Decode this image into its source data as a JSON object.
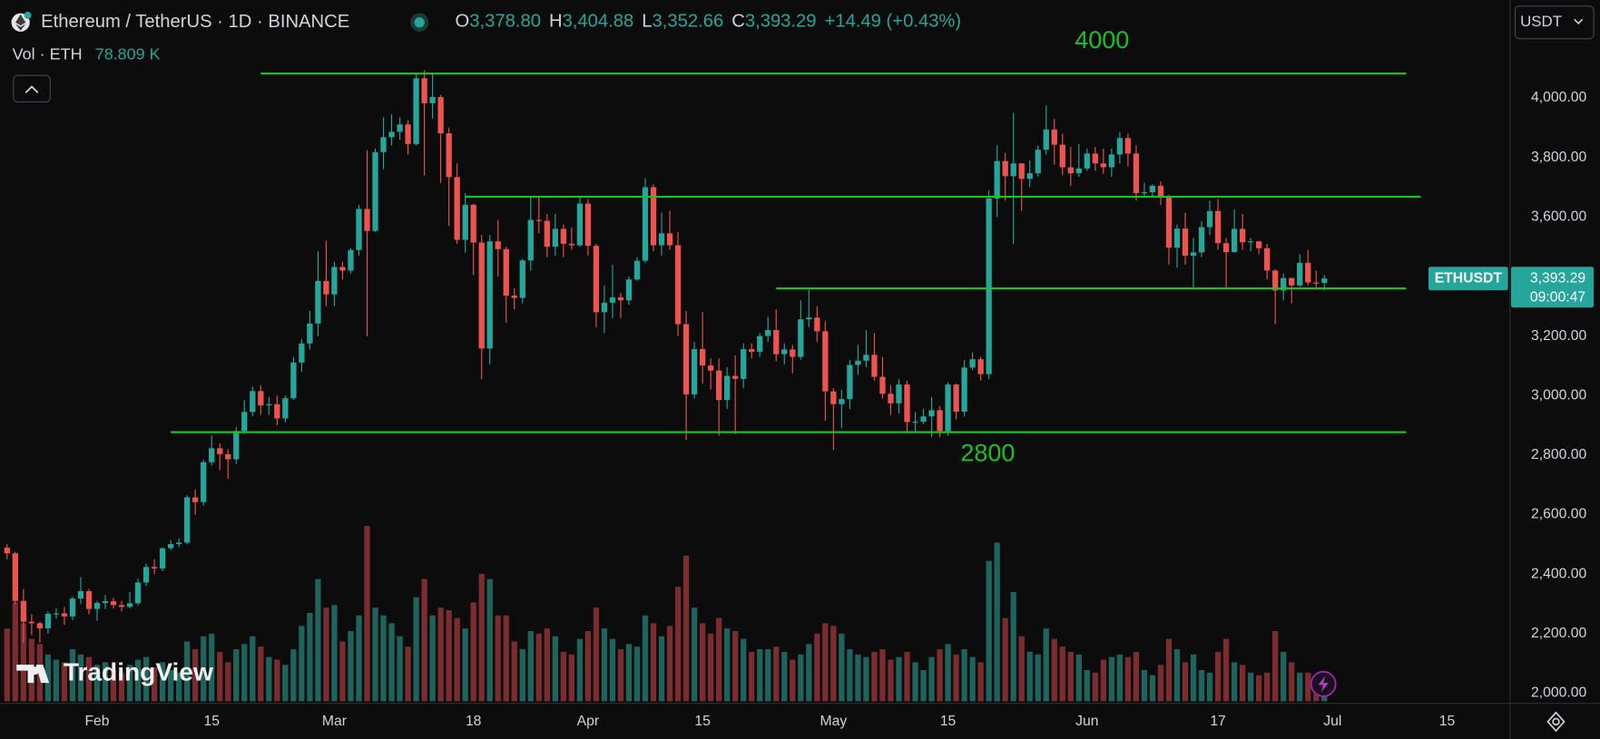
{
  "header": {
    "symbol": "Ethereum / TetherUS · 1D · BINANCE",
    "o_label": "O",
    "open": "3,378.80",
    "h_label": "H",
    "high": "3,404.88",
    "l_label": "L",
    "low": "3,352.66",
    "c_label": "C",
    "close": "3,393.29",
    "change": "+14.49 (+0.43%)",
    "volume_label": "Vol · ETH",
    "volume": "78.809 K",
    "currency": "USDT",
    "watermark": "TradingView"
  },
  "price_tag": {
    "symbol": "ETHUSDT",
    "price": "3,393.29",
    "countdown": "09:00:47"
  },
  "chart_data": {
    "type": "candlestick",
    "up_color": "#26a69a",
    "down_color": "#ef5350",
    "volume_up_color": "#1e645d",
    "volume_down_color": "#7a2c2f",
    "grid": false,
    "xlim": [
      -0.85,
      183.7
    ],
    "ylim": [
      1966,
      4329
    ],
    "xticks": [
      {
        "value": 11,
        "label": "Feb"
      },
      {
        "value": 25,
        "label": "15"
      },
      {
        "value": 40,
        "label": "Mar"
      },
      {
        "value": 57,
        "label": "18"
      },
      {
        "value": 71,
        "label": "Apr"
      },
      {
        "value": 85,
        "label": "15"
      },
      {
        "value": 101,
        "label": "May"
      },
      {
        "value": 115,
        "label": "15"
      },
      {
        "value": 132,
        "label": "Jun"
      },
      {
        "value": 148,
        "label": "17"
      },
      {
        "value": 162,
        "label": "Jul"
      },
      {
        "value": 176,
        "label": "15"
      }
    ],
    "yticks": [
      {
        "value": 2000,
        "label": "2,000.00"
      },
      {
        "value": 2200,
        "label": "2,200.00"
      },
      {
        "value": 2400,
        "label": "2,400.00"
      },
      {
        "value": 2600,
        "label": "2,600.00"
      },
      {
        "value": 2800,
        "label": "2,800.00"
      },
      {
        "value": 3000,
        "label": "3,000.00"
      },
      {
        "value": 3200,
        "label": "3,200.00"
      },
      {
        "value": 3400,
        "label": "3,400.00"
      },
      {
        "value": 3600,
        "label": "3,600.00"
      },
      {
        "value": 3800,
        "label": "3,800.00"
      },
      {
        "value": 4000,
        "label": "4,000.00"
      }
    ],
    "open": [
      2489,
      2470,
      2310,
      2240,
      2235,
      2218,
      2267,
      2268,
      2258,
      2318,
      2343,
      2283,
      2303,
      2309,
      2296,
      2290,
      2302,
      2372,
      2424,
      2419,
      2487,
      2501,
      2506,
      2658,
      2642,
      2776,
      2823,
      2803,
      2786,
      2881,
      2945,
      3015,
      2967,
      2971,
      2923,
      2991,
      3111,
      3175,
      3242,
      3385,
      3340,
      3432,
      3420,
      3489,
      3627,
      3553,
      3818,
      3868,
      3886,
      3911,
      3845,
      4066,
      3982,
      4003,
      3881,
      3734,
      3523,
      3641,
      3514,
      3158,
      3518,
      3492,
      3336,
      3328,
      3454,
      3590,
      3587,
      3500,
      3560,
      3510,
      3505,
      3645,
      3503,
      3280,
      3312,
      3330,
      3320,
      3390,
      3453,
      3700,
      3505,
      3545,
      3505,
      3240,
      3004,
      3156,
      3101,
      3084,
      2985,
      3066,
      3056,
      3156,
      3147,
      3200,
      3220,
      3139,
      3155,
      3130,
      3256,
      3262,
      3216,
      3014,
      2971,
      2988,
      3103,
      3117,
      3137,
      3063,
      3006,
      2974,
      3037,
      2911,
      2912,
      2930,
      2951,
      2881,
      3037,
      2946,
      3094,
      3122,
      3072,
      3662,
      3788,
      3737,
      3780,
      3728,
      3747,
      3826,
      3894,
      3843,
      3767,
      3747,
      3763,
      3813,
      3780,
      3767,
      3810,
      3865,
      3813,
      3680,
      3683,
      3705,
      3666,
      3497,
      3561,
      3470,
      3481,
      3566,
      3620,
      3512,
      3482,
      3560,
      3515,
      3518,
      3495,
      3420,
      3353,
      3395,
      3370,
      3446,
      3380,
      3378.8
    ],
    "high": [
      2500,
      2475,
      2350,
      2265,
      2240,
      2275,
      2285,
      2290,
      2325,
      2390,
      2350,
      2310,
      2330,
      2320,
      2310,
      2340,
      2385,
      2435,
      2450,
      2490,
      2515,
      2520,
      2665,
      2685,
      2785,
      2865,
      2840,
      2820,
      2895,
      2985,
      3030,
      3035,
      2995,
      3000,
      3000,
      3130,
      3190,
      3285,
      3485,
      3520,
      3450,
      3450,
      3495,
      3640,
      3825,
      3830,
      3935,
      3945,
      3935,
      3925,
      4086,
      4093,
      4080,
      4010,
      3900,
      3780,
      3680,
      3645,
      3540,
      3540,
      3590,
      3500,
      3360,
      3460,
      3670,
      3670,
      3610,
      3610,
      3575,
      3565,
      3665,
      3660,
      3510,
      3370,
      3440,
      3345,
      3400,
      3465,
      3730,
      3710,
      3615,
      3620,
      3550,
      3285,
      3180,
      3280,
      3125,
      3125,
      3095,
      3135,
      3175,
      3175,
      3210,
      3265,
      3290,
      3175,
      3170,
      3320,
      3355,
      3300,
      3250,
      3025,
      3020,
      3120,
      3170,
      3220,
      3210,
      3130,
      3035,
      3055,
      3050,
      2945,
      2955,
      2995,
      2965,
      3045,
      3040,
      3120,
      3145,
      3130,
      3690,
      3840,
      3815,
      3950,
      3780,
      3790,
      3840,
      3975,
      3930,
      3880,
      3835,
      3845,
      3830,
      3835,
      3830,
      3830,
      3885,
      3880,
      3840,
      3715,
      3710,
      3720,
      3675,
      3575,
      3615,
      3530,
      3585,
      3655,
      3660,
      3530,
      3625,
      3610,
      3530,
      3520,
      3510,
      3425,
      3410,
      3395,
      3475,
      3490,
      3420,
      3404.88
    ],
    "low": [
      2450,
      2300,
      2168,
      2195,
      2170,
      2200,
      2250,
      2230,
      2245,
      2300,
      2265,
      2243,
      2283,
      2285,
      2275,
      2285,
      2295,
      2360,
      2400,
      2410,
      2480,
      2490,
      2500,
      2600,
      2630,
      2765,
      2750,
      2720,
      2770,
      2870,
      2930,
      2935,
      2935,
      2900,
      2910,
      2985,
      3080,
      3155,
      3200,
      3300,
      3300,
      3390,
      3410,
      3470,
      3200,
      3550,
      3760,
      3840,
      3860,
      3810,
      3840,
      3740,
      3930,
      3715,
      3570,
      3510,
      3480,
      3405,
      3055,
      3105,
      3400,
      3245,
      3290,
      3310,
      3420,
      3545,
      3465,
      3470,
      3465,
      3490,
      3500,
      3470,
      3230,
      3210,
      3260,
      3260,
      3305,
      3385,
      3445,
      3485,
      3470,
      3490,
      3200,
      2850,
      2990,
      3040,
      3020,
      2865,
      2955,
      2870,
      3025,
      3125,
      3130,
      3180,
      3115,
      3105,
      3075,
      3120,
      3230,
      3180,
      2915,
      2817,
      2890,
      2955,
      3070,
      3095,
      3050,
      2990,
      2935,
      2940,
      2875,
      2880,
      2905,
      2860,
      2860,
      2865,
      2920,
      2930,
      3085,
      3050,
      3055,
      3600,
      3655,
      3510,
      3620,
      3700,
      3735,
      3810,
      3775,
      3740,
      3705,
      3735,
      3755,
      3755,
      3745,
      3735,
      3780,
      3770,
      3655,
      3670,
      3665,
      3640,
      3440,
      3430,
      3440,
      3360,
      3465,
      3540,
      3490,
      3360,
      3480,
      3490,
      3485,
      3475,
      3390,
      3240,
      3320,
      3310,
      3365,
      3370,
      3355,
      3352.66
    ],
    "close": [
      2470,
      2310,
      2240,
      2235,
      2218,
      2267,
      2268,
      2258,
      2318,
      2343,
      2283,
      2303,
      2309,
      2296,
      2290,
      2302,
      2372,
      2424,
      2419,
      2487,
      2501,
      2506,
      2658,
      2642,
      2776,
      2823,
      2803,
      2786,
      2881,
      2945,
      3015,
      2967,
      2971,
      2923,
      2991,
      3111,
      3175,
      3242,
      3385,
      3340,
      3432,
      3420,
      3489,
      3627,
      3553,
      3818,
      3868,
      3886,
      3911,
      3845,
      4066,
      3982,
      4003,
      3881,
      3734,
      3523,
      3641,
      3514,
      3158,
      3518,
      3492,
      3336,
      3328,
      3454,
      3590,
      3587,
      3500,
      3560,
      3510,
      3505,
      3645,
      3503,
      3280,
      3312,
      3330,
      3320,
      3390,
      3453,
      3700,
      3505,
      3545,
      3505,
      3240,
      3004,
      3156,
      3101,
      3084,
      2985,
      3066,
      3056,
      3156,
      3147,
      3200,
      3220,
      3139,
      3155,
      3130,
      3256,
      3262,
      3216,
      3014,
      2971,
      2988,
      3103,
      3117,
      3137,
      3063,
      3006,
      2974,
      3037,
      2911,
      2912,
      2930,
      2951,
      2881,
      3037,
      2946,
      3094,
      3122,
      3072,
      3662,
      3788,
      3737,
      3780,
      3728,
      3747,
      3826,
      3894,
      3843,
      3767,
      3747,
      3763,
      3813,
      3780,
      3767,
      3810,
      3865,
      3813,
      3680,
      3683,
      3705,
      3666,
      3497,
      3561,
      3470,
      3481,
      3566,
      3620,
      3512,
      3482,
      3560,
      3515,
      3518,
      3495,
      3420,
      3353,
      3395,
      3370,
      3446,
      3380,
      3378.8,
      3393.29
    ],
    "volume": [
      280,
      380,
      300,
      240,
      220,
      180,
      160,
      150,
      200,
      180,
      170,
      140,
      150,
      120,
      110,
      140,
      160,
      170,
      130,
      150,
      120,
      110,
      230,
      200,
      250,
      260,
      190,
      150,
      200,
      220,
      250,
      210,
      170,
      160,
      140,
      200,
      290,
      340,
      470,
      360,
      370,
      230,
      270,
      330,
      674,
      360,
      330,
      300,
      250,
      210,
      400,
      470,
      330,
      360,
      350,
      320,
      280,
      380,
      490,
      470,
      330,
      330,
      230,
      200,
      270,
      260,
      280,
      250,
      190,
      180,
      240,
      270,
      360,
      280,
      240,
      200,
      220,
      210,
      330,
      300,
      250,
      290,
      440,
      560,
      360,
      300,
      260,
      320,
      280,
      270,
      240,
      190,
      200,
      200,
      210,
      190,
      160,
      180,
      220,
      260,
      300,
      290,
      260,
      200,
      180,
      170,
      190,
      200,
      160,
      170,
      190,
      150,
      120,
      170,
      200,
      220,
      180,
      200,
      170,
      150,
      540,
      610,
      320,
      420,
      250,
      190,
      180,
      280,
      240,
      210,
      190,
      180,
      120,
      110,
      160,
      170,
      180,
      170,
      190,
      120,
      100,
      140,
      240,
      200,
      150,
      180,
      120,
      110,
      190,
      240,
      150,
      140,
      110,
      100,
      110,
      270,
      190,
      150,
      110,
      110,
      80,
      78.809
    ],
    "drawing_color": "#1fc01f",
    "drawings": [
      {
        "price": 4082,
        "from": 31,
        "to": 171,
        "label": "4000"
      },
      {
        "price": 3668,
        "from": 56,
        "to": 172.8
      },
      {
        "price": 3360,
        "from": 94,
        "to": 171
      },
      {
        "price": 2877,
        "from": 20,
        "to": 171,
        "label": "2800"
      }
    ]
  }
}
